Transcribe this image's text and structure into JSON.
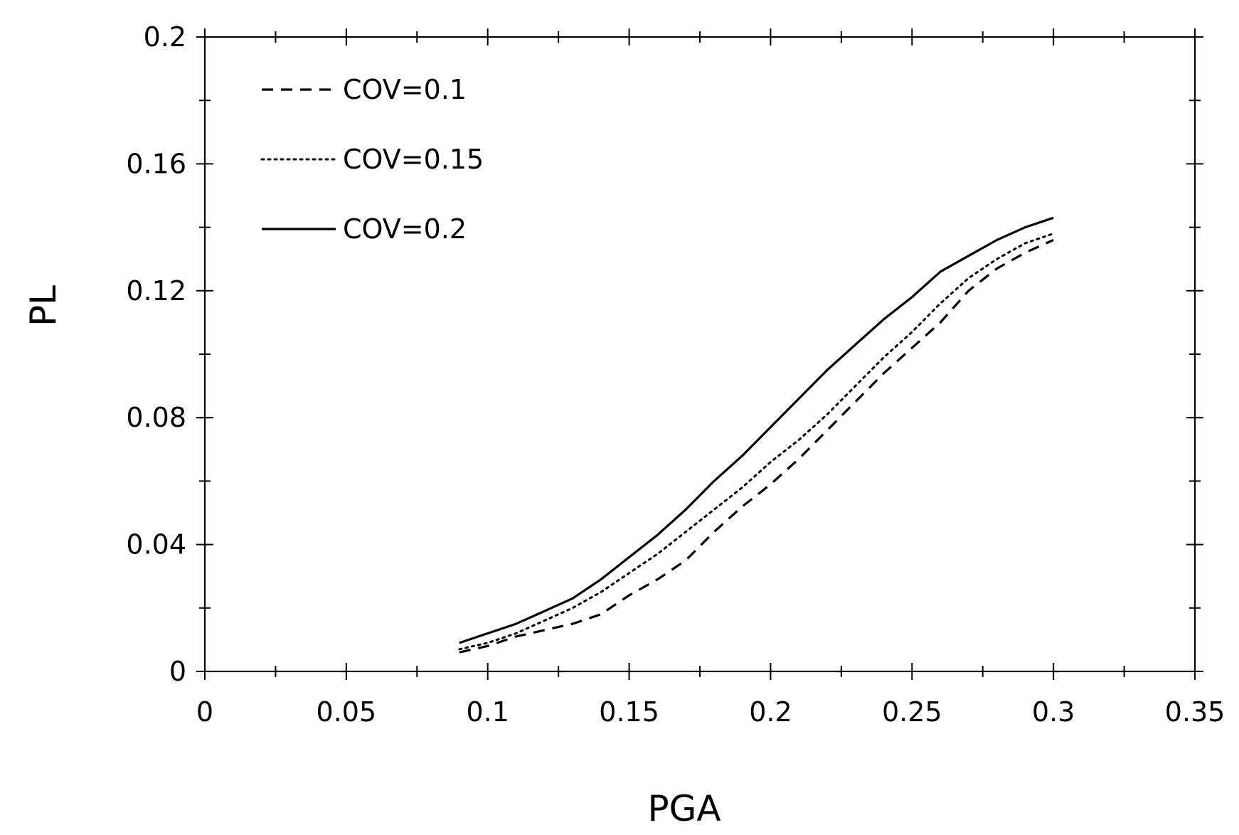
{
  "chart_data": {
    "type": "line",
    "title": "",
    "xlabel": "PGA",
    "ylabel": "PL",
    "xlim": [
      0,
      0.35
    ],
    "ylim": [
      0,
      0.2
    ],
    "x_ticks": [
      "0",
      "0.05",
      "0.1",
      "0.15",
      "0.2",
      "0.25",
      "0.3",
      "0.35"
    ],
    "x_tick_values": [
      0,
      0.05,
      0.1,
      0.15,
      0.2,
      0.25,
      0.3,
      0.35
    ],
    "y_ticks": [
      "0",
      "0.04",
      "0.08",
      "0.12",
      "0.16",
      "0.2"
    ],
    "y_tick_values": [
      0,
      0.04,
      0.08,
      0.12,
      0.16,
      0.2
    ],
    "grid": false,
    "legend_position": "top-left",
    "x": [
      0.09,
      0.1,
      0.11,
      0.12,
      0.13,
      0.14,
      0.15,
      0.16,
      0.17,
      0.18,
      0.19,
      0.2,
      0.21,
      0.22,
      0.23,
      0.24,
      0.25,
      0.26,
      0.27,
      0.28,
      0.29,
      0.3
    ],
    "series": [
      {
        "name": "COV=0.1",
        "style": "dashed",
        "values": [
          0.006,
          0.008,
          0.011,
          0.013,
          0.015,
          0.018,
          0.024,
          0.029,
          0.035,
          0.044,
          0.052,
          0.059,
          0.067,
          0.076,
          0.085,
          0.094,
          0.102,
          0.11,
          0.12,
          0.127,
          0.132,
          0.136
        ]
      },
      {
        "name": "COV=0.15",
        "style": "dotted",
        "values": [
          0.007,
          0.009,
          0.012,
          0.016,
          0.02,
          0.025,
          0.031,
          0.037,
          0.044,
          0.051,
          0.058,
          0.066,
          0.073,
          0.081,
          0.09,
          0.099,
          0.107,
          0.116,
          0.124,
          0.13,
          0.135,
          0.138
        ]
      },
      {
        "name": "COV=0.2",
        "style": "solid",
        "values": [
          0.009,
          0.012,
          0.015,
          0.019,
          0.023,
          0.029,
          0.036,
          0.043,
          0.051,
          0.06,
          0.068,
          0.077,
          0.086,
          0.095,
          0.103,
          0.111,
          0.118,
          0.126,
          0.131,
          0.136,
          0.14,
          0.143
        ]
      }
    ]
  }
}
